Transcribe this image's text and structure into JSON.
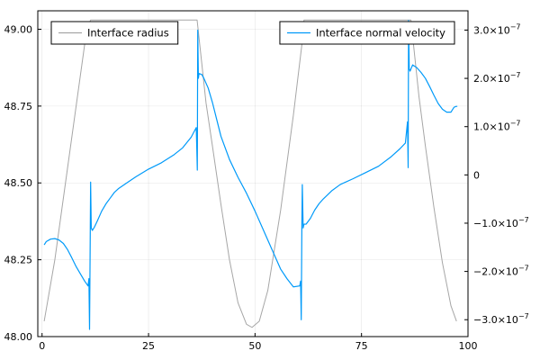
{
  "chart_data": {
    "type": "line",
    "x_axis": {
      "range": [
        -1,
        100
      ],
      "ticks": [
        0,
        25,
        50,
        75,
        100
      ],
      "tick_labels": [
        "0",
        "25",
        "50",
        "75",
        "100"
      ]
    },
    "y_left": {
      "range": [
        48.0,
        49.06
      ],
      "ticks": [
        48.0,
        48.25,
        48.5,
        48.75,
        49.0
      ],
      "tick_labels": [
        "48.00",
        "48.25",
        "48.50",
        "48.75",
        "49.00"
      ]
    },
    "y_right": {
      "range": [
        -3.35e-07,
        3.4e-07
      ],
      "ticks": [
        -3e-07,
        -2e-07,
        -1e-07,
        0,
        1e-07,
        2e-07,
        3e-07
      ],
      "tick_labels": [
        {
          "mantissa": "−3.0×10",
          "exp": "−7"
        },
        {
          "mantissa": "−2.0×10",
          "exp": "−7"
        },
        {
          "mantissa": "−1.0×10",
          "exp": "−7"
        },
        {
          "mantissa": "0",
          "exp": ""
        },
        {
          "mantissa": "1.0×10",
          "exp": "−7"
        },
        {
          "mantissa": "2.0×10",
          "exp": "−7"
        },
        {
          "mantissa": "3.0×10",
          "exp": "−7"
        }
      ]
    },
    "grid": true,
    "series": [
      {
        "name": "Interface radius",
        "axis": "left",
        "color": "#a6a6a6",
        "points": [
          [
            0.5,
            48.05
          ],
          [
            3,
            48.25
          ],
          [
            5.5,
            48.5
          ],
          [
            8,
            48.75
          ],
          [
            10.5,
            49.0
          ],
          [
            11.4,
            49.03
          ],
          [
            36.4,
            49.03
          ],
          [
            38.5,
            48.76
          ],
          [
            40,
            48.62
          ],
          [
            42,
            48.43
          ],
          [
            44,
            48.25
          ],
          [
            46,
            48.11
          ],
          [
            48,
            48.04
          ],
          [
            49.3,
            48.03
          ],
          [
            51,
            48.05
          ],
          [
            53,
            48.15
          ],
          [
            56,
            48.41
          ],
          [
            59,
            48.72
          ],
          [
            61,
            48.95
          ],
          [
            61.5,
            49.03
          ],
          [
            86.6,
            49.03
          ],
          [
            88.5,
            48.78
          ],
          [
            90,
            48.62
          ],
          [
            92,
            48.42
          ],
          [
            94,
            48.24
          ],
          [
            96,
            48.1
          ],
          [
            97.3,
            48.05
          ]
        ]
      },
      {
        "name": "Interface normal velocity",
        "axis": "right",
        "color": "#009af9",
        "points": [
          [
            0.5,
            -1.45e-07
          ],
          [
            1,
            -1.38e-07
          ],
          [
            2,
            -1.33e-07
          ],
          [
            3,
            -1.32e-07
          ],
          [
            4,
            -1.35e-07
          ],
          [
            5,
            -1.42e-07
          ],
          [
            6,
            -1.55e-07
          ],
          [
            7,
            -1.72e-07
          ],
          [
            8,
            -1.9e-07
          ],
          [
            9,
            -2.05e-07
          ],
          [
            10,
            -2.2e-07
          ],
          [
            10.8,
            -2.3e-07
          ],
          [
            11,
            -2.15e-07
          ],
          [
            11.15,
            -3.2e-07
          ],
          [
            11.3,
            -1.4e-07
          ],
          [
            11.4,
            -1.5e-08
          ],
          [
            11.55,
            -1.1e-07
          ],
          [
            11.8,
            -1.15e-07
          ],
          [
            12.3,
            -1.08e-07
          ],
          [
            13,
            -9.5e-08
          ],
          [
            14,
            -7.5e-08
          ],
          [
            15,
            -6e-08
          ],
          [
            16,
            -4.8e-08
          ],
          [
            17,
            -3.6e-08
          ],
          [
            18,
            -2.8e-08
          ],
          [
            20,
            -1.6e-08
          ],
          [
            22,
            -4e-09
          ],
          [
            25,
            1.2e-08
          ],
          [
            28,
            2.5e-08
          ],
          [
            31,
            4.2e-08
          ],
          [
            33,
            5.6e-08
          ],
          [
            35,
            7.8e-08
          ],
          [
            36.2,
            9.8e-08
          ],
          [
            36.3,
            6.5e-08
          ],
          [
            36.45,
            1e-08
          ],
          [
            36.55,
            3e-07
          ],
          [
            36.7,
            2e-07
          ],
          [
            36.85,
            2.1e-07
          ],
          [
            37.5,
            2.08e-07
          ],
          [
            38,
            2e-07
          ],
          [
            39,
            1.8e-07
          ],
          [
            40,
            1.5e-07
          ],
          [
            41,
            1.15e-07
          ],
          [
            42,
            8e-08
          ],
          [
            44,
            3.2e-08
          ],
          [
            46,
            -5e-09
          ],
          [
            48,
            -3.8e-08
          ],
          [
            50,
            -7.5e-08
          ],
          [
            52,
            -1.15e-07
          ],
          [
            54,
            -1.55e-07
          ],
          [
            56,
            -1.95e-07
          ],
          [
            57.5,
            -2.15e-07
          ],
          [
            59,
            -2.32e-07
          ],
          [
            60.5,
            -2.3e-07
          ],
          [
            60.7,
            -2.2e-07
          ],
          [
            60.85,
            -3e-07
          ],
          [
            61,
            -1e-07
          ],
          [
            61.1,
            -2e-08
          ],
          [
            61.3,
            -1.1e-07
          ],
          [
            61.5,
            -1.02e-07
          ],
          [
            62,
            -1.02e-07
          ],
          [
            63,
            -9e-08
          ],
          [
            64,
            -7.3e-08
          ],
          [
            65,
            -6e-08
          ],
          [
            66,
            -5e-08
          ],
          [
            68,
            -3.3e-08
          ],
          [
            70,
            -2e-08
          ],
          [
            73,
            -8e-09
          ],
          [
            76,
            5e-09
          ],
          [
            79,
            1.8e-08
          ],
          [
            82,
            3.8e-08
          ],
          [
            84,
            5.4e-08
          ],
          [
            85.3,
            6.6e-08
          ],
          [
            85.8,
            1.1e-07
          ],
          [
            85.95,
            1.5e-08
          ],
          [
            86.05,
            3.2e-07
          ],
          [
            86.2,
            2.2e-07
          ],
          [
            86.4,
            2.15e-07
          ],
          [
            87,
            2.28e-07
          ],
          [
            88,
            2.22e-07
          ],
          [
            89,
            2.12e-07
          ],
          [
            90,
            2e-07
          ],
          [
            91,
            1.83e-07
          ],
          [
            92,
            1.65e-07
          ],
          [
            93,
            1.48e-07
          ],
          [
            94,
            1.36e-07
          ],
          [
            95,
            1.3e-07
          ],
          [
            96,
            1.3e-07
          ],
          [
            96.7,
            1.4e-07
          ],
          [
            97.2,
            1.42e-07
          ],
          [
            97.5,
            1.42e-07
          ]
        ]
      }
    ],
    "legends": [
      {
        "placement": "top-left",
        "entries": [
          {
            "label": "Interface radius",
            "color": "#a6a6a6"
          }
        ]
      },
      {
        "placement": "top-right",
        "entries": [
          {
            "label": "Interface normal velocity",
            "color": "#009af9"
          }
        ]
      }
    ]
  }
}
